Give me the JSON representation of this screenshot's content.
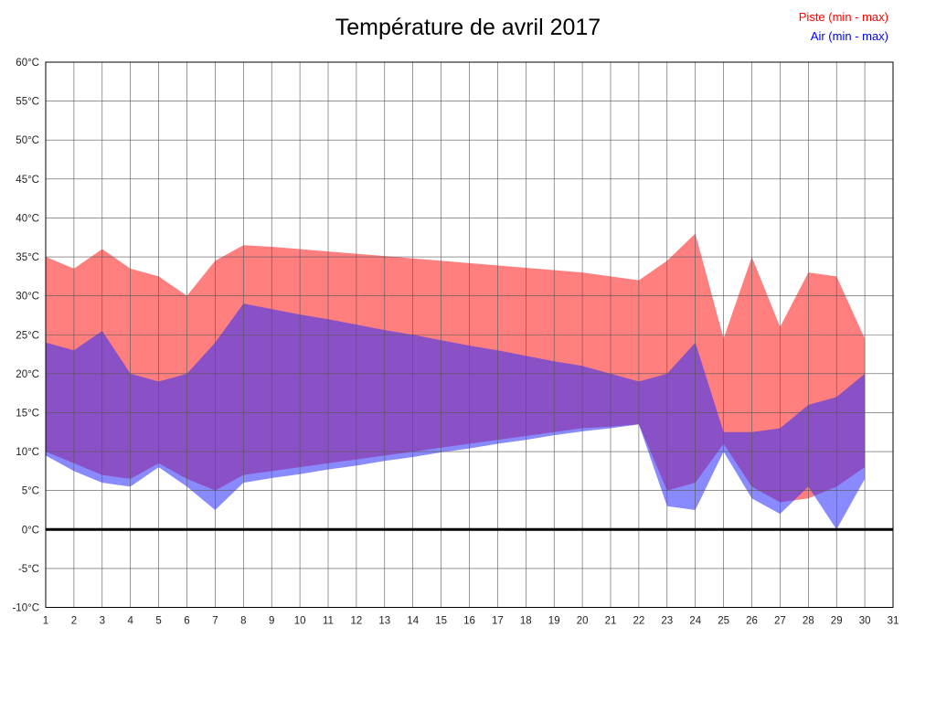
{
  "title": "Température de avril 2017",
  "legend": {
    "piste": {
      "label": "Piste (min - max)",
      "color": "#ff0000"
    },
    "air": {
      "label": "Air (min - max)",
      "color": "#0000ff"
    }
  },
  "chart_data": {
    "type": "area",
    "title": "Température de avril 2017",
    "x": [
      1,
      2,
      3,
      4,
      5,
      6,
      7,
      8,
      9,
      10,
      11,
      12,
      13,
      14,
      15,
      16,
      17,
      18,
      19,
      20,
      21,
      22,
      23,
      24,
      25,
      26,
      27,
      28,
      29,
      30
    ],
    "series": [
      {
        "name": "Piste (min - max)",
        "role": "piste",
        "fill": "#ff7f7f",
        "opacity": 1,
        "max": [
          35,
          33.5,
          36,
          33.5,
          32.5,
          30,
          34.5,
          36.5,
          36.3,
          36,
          35.7,
          35.4,
          35.1,
          34.8,
          34.5,
          34.2,
          33.9,
          33.6,
          33.3,
          33,
          32.5,
          32,
          34.5,
          38,
          24.5,
          35,
          26,
          33,
          32.5,
          24.5
        ],
        "min": [
          10,
          8.5,
          7,
          6.5,
          8.5,
          6.5,
          5,
          7,
          7.5,
          8,
          8.5,
          9,
          9.5,
          10,
          10.5,
          11,
          11.5,
          12,
          12.5,
          13,
          13.2,
          13.5,
          5,
          6,
          11,
          5.5,
          3.5,
          4,
          5.5,
          8
        ]
      },
      {
        "name": "Air (min - max)",
        "role": "air",
        "fill": "#2a2aff",
        "opacity": 0.55,
        "max": [
          24,
          23,
          25.5,
          20,
          19,
          20,
          24,
          29,
          28.3,
          27.6,
          27,
          26.3,
          25.6,
          25,
          24.3,
          23.6,
          23,
          22.3,
          21.6,
          21,
          20,
          19,
          20,
          24,
          12.5,
          12.5,
          13,
          16,
          17,
          20
        ],
        "min": [
          9.5,
          7.5,
          6,
          5.5,
          8,
          5.5,
          2.5,
          6,
          6.6,
          7.1,
          7.7,
          8.2,
          8.8,
          9.3,
          9.9,
          10.4,
          11,
          11.5,
          12.1,
          12.6,
          13,
          13.5,
          3,
          2.5,
          10,
          4,
          2,
          5.5,
          0,
          6.5
        ]
      }
    ],
    "xlim": [
      1,
      31
    ],
    "ylim": [
      -10,
      60
    ],
    "x_tick_values": [
      1,
      2,
      3,
      4,
      5,
      6,
      7,
      8,
      9,
      10,
      11,
      12,
      13,
      14,
      15,
      16,
      17,
      18,
      19,
      20,
      21,
      22,
      23,
      24,
      25,
      26,
      27,
      28,
      29,
      30,
      31
    ],
    "x_tick_labels": [
      "1",
      "2",
      "3",
      "4",
      "5",
      "6",
      "7",
      "8",
      "9",
      "10",
      "11",
      "12",
      "13",
      "14",
      "15",
      "16",
      "17",
      "18",
      "19",
      "20",
      "21",
      "22",
      "23",
      "24",
      "25",
      "26",
      "27",
      "28",
      "29",
      "30",
      "31"
    ],
    "y_tick_values": [
      60,
      55,
      50,
      45,
      40,
      35,
      30,
      25,
      20,
      15,
      10,
      5,
      0,
      -5,
      -10
    ],
    "y_tick_labels": [
      "60°C",
      "55°C",
      "50°C",
      "45°C",
      "40°C",
      "35°C",
      "30°C",
      "25°C",
      "20°C",
      "15°C",
      "10°C",
      "5°C",
      "0°C",
      "-5°C",
      "-10°C"
    ],
    "grid": true,
    "zero_line_value": 0,
    "legend_position": "top-right",
    "axis_color": "#000000",
    "grid_color": "#555555"
  }
}
